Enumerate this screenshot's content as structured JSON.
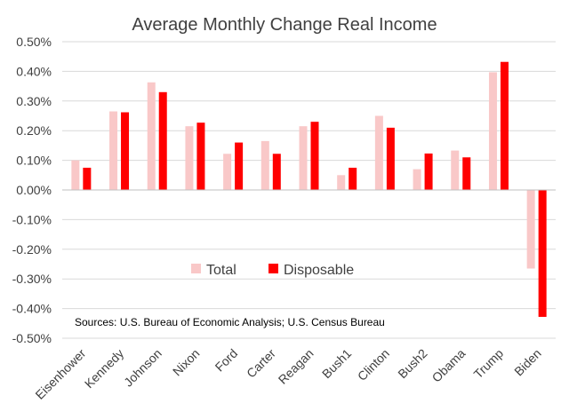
{
  "chart_data": {
    "type": "bar",
    "title": "Average Monthly Change Real Income",
    "xlabel": "",
    "ylabel": "",
    "ylim": [
      -0.5,
      0.5
    ],
    "ytick_step": 0.1,
    "ytick_labels": [
      "-0.50%",
      "-0.40%",
      "-0.30%",
      "-0.20%",
      "-0.10%",
      "0.00%",
      "0.10%",
      "0.20%",
      "0.30%",
      "0.40%",
      "0.50%"
    ],
    "categories": [
      "Eisenhower",
      "Kennedy",
      "Johnson",
      "Nixon",
      "Ford",
      "Carter",
      "Reagan",
      "Bush1",
      "Clinton",
      "Bush2",
      "Obama",
      "Trump",
      "Biden"
    ],
    "series": [
      {
        "name": "Total",
        "color": "#f9c8c8",
        "values": [
          0.1,
          0.265,
          0.363,
          0.215,
          0.122,
          0.165,
          0.215,
          0.05,
          0.25,
          0.07,
          0.133,
          0.397,
          -0.265
        ]
      },
      {
        "name": "Disposable",
        "color": "#ff0000",
        "values": [
          0.075,
          0.262,
          0.33,
          0.227,
          0.16,
          0.122,
          0.23,
          0.075,
          0.21,
          0.123,
          0.11,
          0.432,
          -0.428
        ]
      }
    ],
    "legend": {
      "position": "lower-center",
      "items": [
        "Total",
        "Disposable"
      ]
    },
    "grid": true,
    "annotation": "Sources: U.S. Bureau of Economic Analysis; U.S. Census Bureau"
  }
}
